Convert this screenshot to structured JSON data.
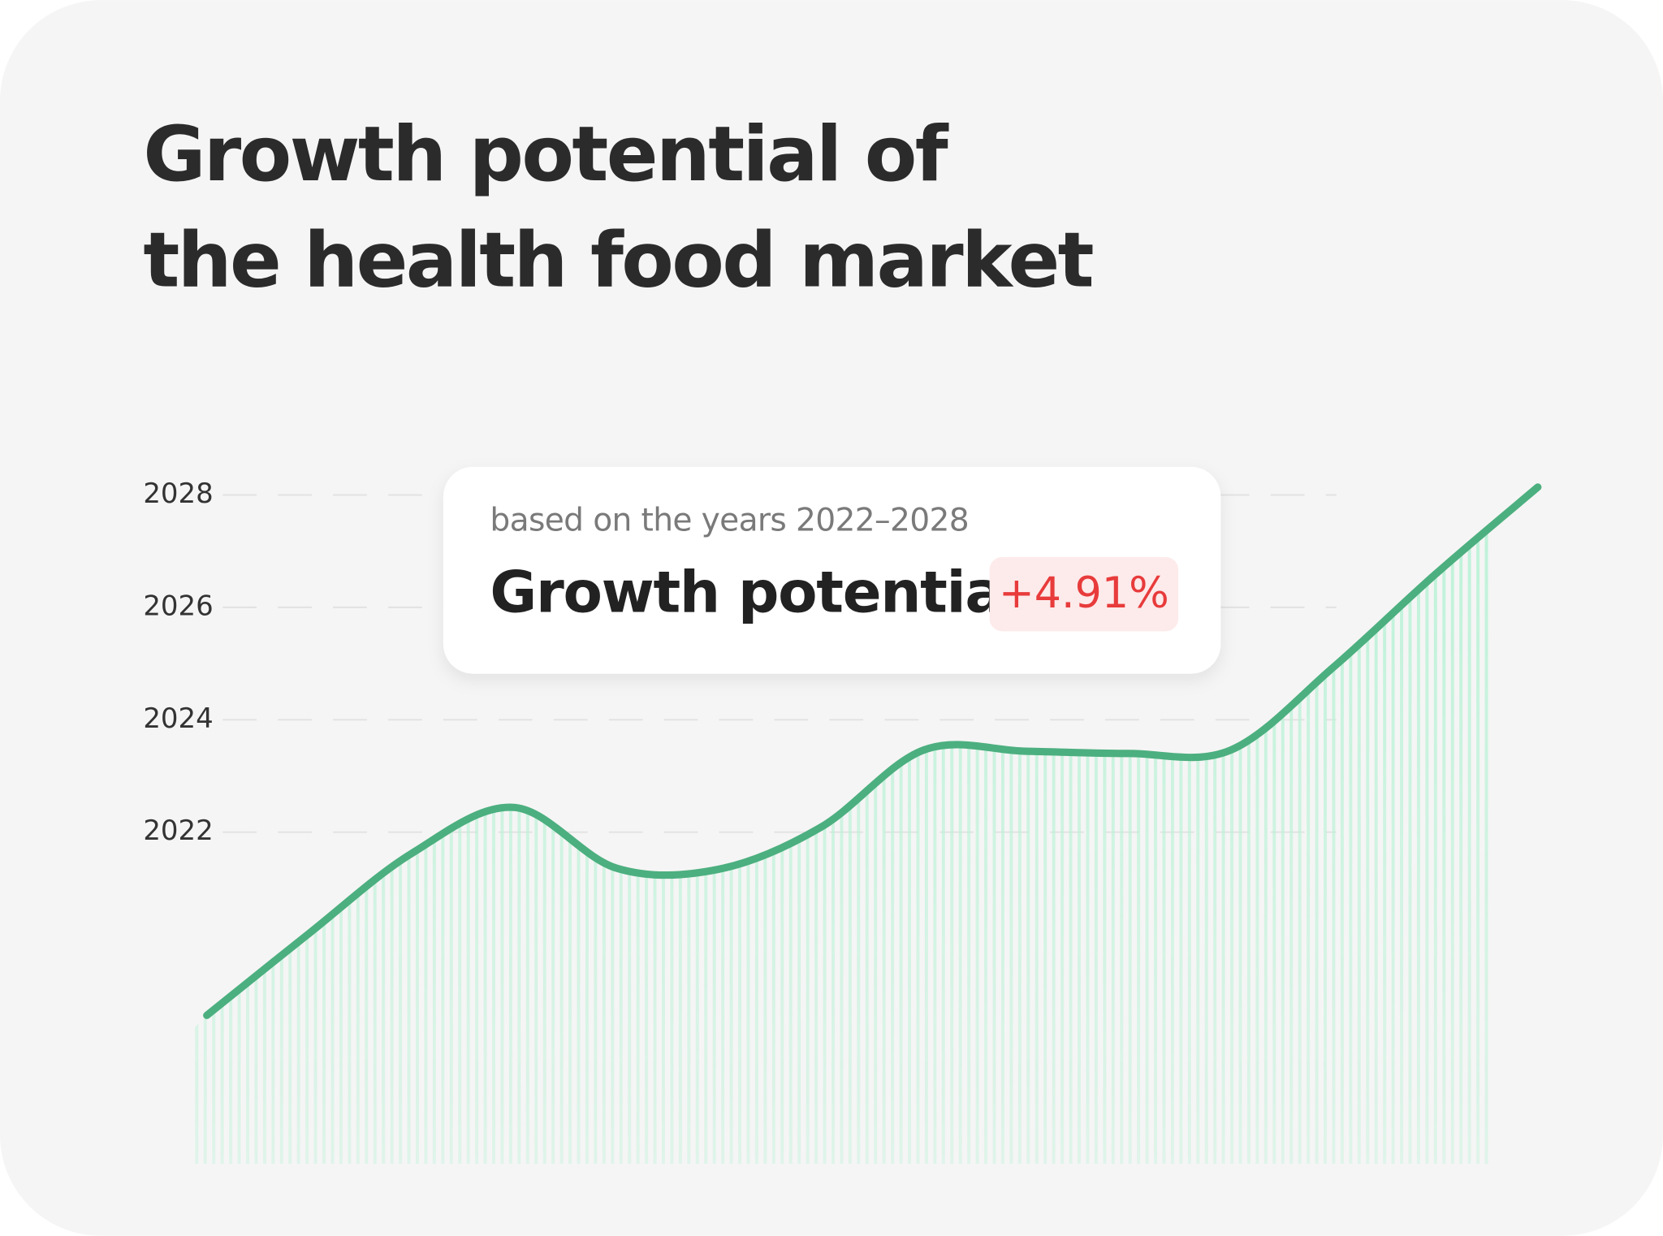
{
  "chart_data": {
    "type": "line",
    "title_lines": [
      "Growth potential of",
      "the health food market"
    ],
    "values": [
      2018.74,
      2020.2,
      2021.62,
      2022.44,
      2021.36,
      2021.34,
      2022.09,
      2023.46,
      2023.44,
      2023.4,
      2023.46,
      2024.93,
      2026.59,
      2028.14
    ],
    "color": "#4caf7f",
    "ylim": [
      2016.1,
      2028.5
    ],
    "yticks": [
      2022,
      2024,
      2026,
      2028
    ],
    "grid": true
  },
  "card": {
    "subtitle": "based on the years 2022–2028",
    "label": "Growth potential",
    "badge": "+4.91%"
  }
}
